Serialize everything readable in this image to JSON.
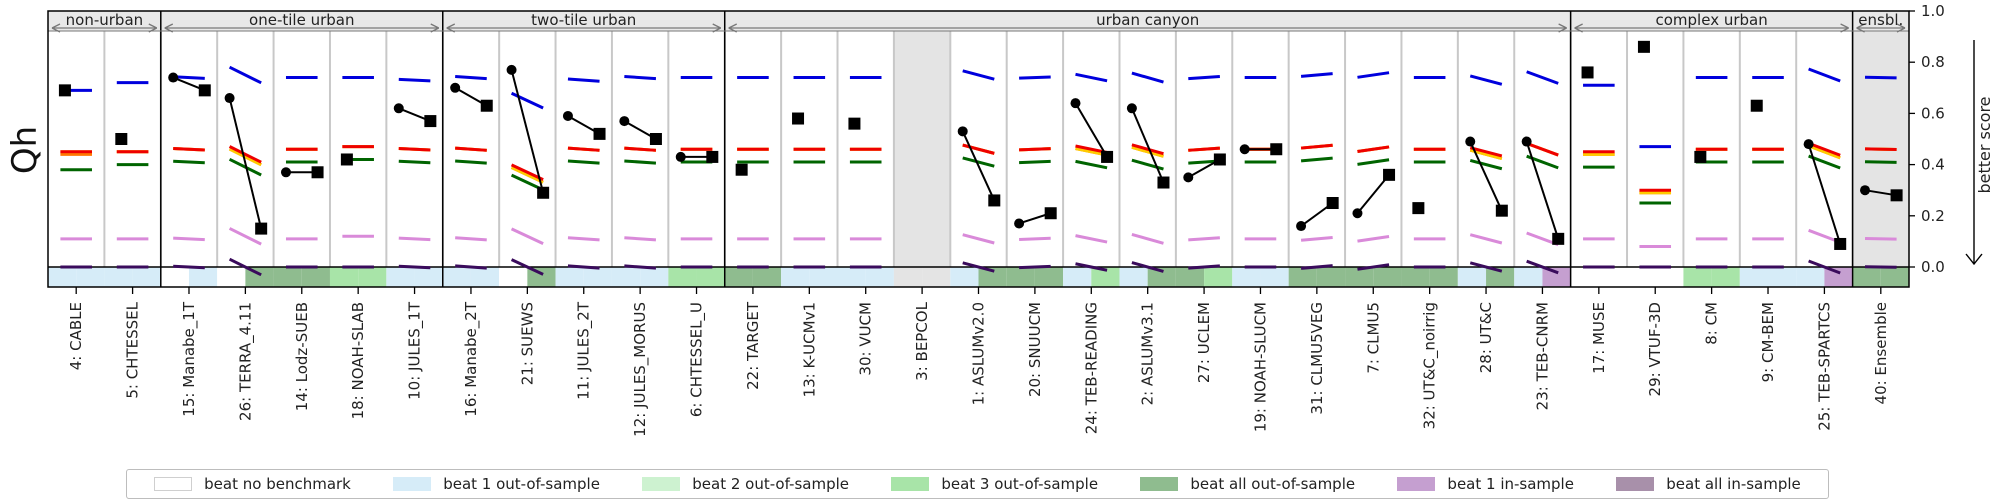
{
  "chart_data": {
    "type": "line",
    "ylabel": "Qh",
    "right_label": "better score",
    "ylim": [
      0.0,
      1.0
    ],
    "yticks": [
      "0.0",
      "0.2",
      "0.4",
      "0.6",
      "0.8",
      "1.0"
    ],
    "groups": [
      {
        "label": "non-urban",
        "start": 0,
        "end": 1
      },
      {
        "label": "one-tile urban",
        "start": 2,
        "end": 6
      },
      {
        "label": "two-tile urban",
        "start": 7,
        "end": 11
      },
      {
        "label": "urban canyon",
        "start": 12,
        "end": 26
      },
      {
        "label": "complex urban",
        "start": 27,
        "end": 31
      },
      {
        "label": "ensbl.",
        "start": 32,
        "end": 32
      }
    ],
    "benchmark_colors": {
      "1:l": "#0000dd",
      "2:s": "#ff7700",
      "3:i": "#ee0000",
      "4:e": "#ffcc00",
      "5:a": "#006400",
      "6:n": "#d98ad9",
      "7:s": "#3a0b5c"
    },
    "legend": [
      {
        "label": "beat no benchmark",
        "color": "#ffffff"
      },
      {
        "label": "beat 1 out-of-sample",
        "color": "#d6ecf8"
      },
      {
        "label": "beat 2 out-of-sample",
        "color": "#cdf2d0"
      },
      {
        "label": "beat 3 out-of-sample",
        "color": "#a8e4a8"
      },
      {
        "label": "beat all out-of-sample",
        "color": "#8fbc8f"
      },
      {
        "label": "beat 1 in-sample",
        "color": "#c59fd0"
      },
      {
        "label": "beat all in-sample",
        "color": "#a890aa"
      }
    ],
    "models": [
      {
        "label": "4: CABLE",
        "p1": 0.69,
        "p2": null,
        "bench": [
          0.69,
          0.44,
          0.45,
          0.45,
          0.38,
          0.11,
          0.0
        ],
        "strip": [
          "#d6ecf8",
          "#d6ecf8"
        ]
      },
      {
        "label": "5: CHTESSEL",
        "p1": 0.5,
        "p2": null,
        "bench": [
          0.72,
          0.45,
          0.45,
          0.45,
          0.4,
          0.11,
          0.0
        ],
        "strip": [
          "#d6ecf8",
          "#d6ecf8"
        ]
      },
      {
        "label": "15: Manabe_1T",
        "p1": 0.74,
        "p2": 0.69,
        "bench": [
          0.74,
          0.46,
          0.46,
          0.46,
          0.41,
          0.11,
          0.0
        ],
        "strip": [
          "#ffffff",
          "#d6ecf8"
        ]
      },
      {
        "label": "26: TERRA_4.11",
        "p1": 0.66,
        "p2": 0.15,
        "bench": [
          0.75,
          0.43,
          0.44,
          0.43,
          0.39,
          0.12,
          0.0
        ],
        "strip": [
          "#ffffff",
          "#8fbc8f"
        ]
      },
      {
        "label": "14: Lodz-SUEB",
        "p1": 0.37,
        "p2": 0.37,
        "bench": [
          0.74,
          0.46,
          0.46,
          0.46,
          0.41,
          0.11,
          0.0
        ],
        "strip": [
          "#8fbc8f",
          "#8fbc8f"
        ]
      },
      {
        "label": "18: NOAH-SLAB",
        "p1": 0.42,
        "p2": null,
        "bench": [
          0.74,
          0.47,
          0.47,
          0.47,
          0.42,
          0.12,
          0.0
        ],
        "strip": [
          "#a8e4a8",
          "#a8e4a8"
        ]
      },
      {
        "label": "10: JULES_1T",
        "p1": 0.62,
        "p2": 0.57,
        "bench": [
          0.73,
          0.46,
          0.46,
          0.46,
          0.41,
          0.11,
          0.0
        ],
        "strip": [
          "#d6ecf8",
          "#d6ecf8"
        ]
      },
      {
        "label": "16: Manabe_2T",
        "p1": 0.7,
        "p2": 0.63,
        "bench": [
          0.74,
          0.46,
          0.46,
          0.46,
          0.41,
          0.11,
          0.0
        ],
        "strip": [
          "#d6ecf8",
          "#d6ecf8"
        ]
      },
      {
        "label": "21: SUEWS",
        "p1": 0.77,
        "p2": 0.29,
        "bench": [
          0.65,
          0.36,
          0.37,
          0.36,
          0.33,
          0.12,
          0.0
        ],
        "strip": [
          "#ffffff",
          "#8fbc8f"
        ]
      },
      {
        "label": "11: JULES_2T",
        "p1": 0.59,
        "p2": 0.52,
        "bench": [
          0.73,
          0.46,
          0.46,
          0.46,
          0.41,
          0.11,
          0.0
        ],
        "strip": [
          "#d6ecf8",
          "#d6ecf8"
        ]
      },
      {
        "label": "12: JULES_MORUS",
        "p1": 0.57,
        "p2": 0.5,
        "bench": [
          0.74,
          0.46,
          0.46,
          0.46,
          0.41,
          0.11,
          0.0
        ],
        "strip": [
          "#d6ecf8",
          "#d6ecf8"
        ]
      },
      {
        "label": "6: CHTESSEL_U",
        "p1": 0.43,
        "p2": 0.43,
        "bench": [
          0.74,
          0.46,
          0.46,
          0.46,
          0.41,
          0.11,
          0.0
        ],
        "strip": [
          "#a8e4a8",
          "#a8e4a8"
        ]
      },
      {
        "label": "22: TARGET",
        "p1": 0.38,
        "p2": null,
        "bench": [
          0.74,
          0.46,
          0.46,
          0.46,
          0.41,
          0.11,
          0.0
        ],
        "strip": [
          "#8fbc8f",
          "#8fbc8f"
        ]
      },
      {
        "label": "13: K-UCMv1",
        "p1": 0.58,
        "p2": null,
        "bench": [
          0.74,
          0.46,
          0.46,
          0.46,
          0.41,
          0.11,
          0.0
        ],
        "strip": [
          "#d6ecf8",
          "#d6ecf8"
        ]
      },
      {
        "label": "30: VUCM",
        "p1": 0.56,
        "p2": null,
        "bench": [
          0.74,
          0.46,
          0.46,
          0.46,
          0.41,
          0.11,
          0.0
        ],
        "strip": [
          "#d6ecf8",
          "#d6ecf8"
        ]
      },
      {
        "label": "3: BEPCOL",
        "p1": null,
        "p2": null,
        "bench": null,
        "strip": [
          "#e4e4e4",
          "#e4e4e4"
        ]
      },
      {
        "label": "1: ASLUMv2.0",
        "p1": 0.53,
        "p2": 0.26,
        "bench": [
          0.75,
          0.46,
          0.46,
          0.46,
          0.41,
          0.11,
          0.0
        ],
        "strip": [
          "#d6ecf8",
          "#8fbc8f"
        ]
      },
      {
        "label": "20: SNUUCM",
        "p1": 0.17,
        "p2": 0.21,
        "bench": [
          0.74,
          0.46,
          0.46,
          0.46,
          0.41,
          0.11,
          0.0
        ],
        "strip": [
          "#8fbc8f",
          "#8fbc8f"
        ]
      },
      {
        "label": "24: TEB-READING",
        "p1": 0.64,
        "p2": 0.43,
        "bench": [
          0.74,
          0.45,
          0.46,
          0.45,
          0.4,
          0.11,
          0.0
        ],
        "strip": [
          "#d6ecf8",
          "#a8e4a8"
        ]
      },
      {
        "label": "2: ASLUMv3.1",
        "p1": 0.62,
        "p2": 0.33,
        "bench": [
          0.74,
          0.45,
          0.46,
          0.45,
          0.4,
          0.11,
          0.0
        ],
        "strip": [
          "#d6ecf8",
          "#8fbc8f"
        ]
      },
      {
        "label": "27: UCLEM",
        "p1": 0.35,
        "p2": 0.42,
        "bench": [
          0.74,
          0.46,
          0.46,
          0.46,
          0.41,
          0.11,
          0.0
        ],
        "strip": [
          "#8fbc8f",
          "#a8e4a8"
        ]
      },
      {
        "label": "19: NOAH-SLUCM",
        "p1": 0.46,
        "p2": 0.46,
        "bench": [
          0.74,
          0.46,
          0.46,
          0.46,
          0.41,
          0.11,
          0.0
        ],
        "strip": [
          "#d6ecf8",
          "#d6ecf8"
        ]
      },
      {
        "label": "31: CLMU5VEG",
        "p1": 0.16,
        "p2": 0.25,
        "bench": [
          0.75,
          0.47,
          0.47,
          0.47,
          0.42,
          0.11,
          0.0
        ],
        "strip": [
          "#8fbc8f",
          "#8fbc8f"
        ]
      },
      {
        "label": "7: CLMU5",
        "p1": 0.21,
        "p2": 0.36,
        "bench": [
          0.75,
          0.46,
          0.46,
          0.46,
          0.41,
          0.11,
          0.0
        ],
        "strip": [
          "#8fbc8f",
          "#8fbc8f"
        ]
      },
      {
        "label": "32: UT&C_noirrig",
        "p1": 0.23,
        "p2": null,
        "bench": [
          0.74,
          0.46,
          0.46,
          0.46,
          0.41,
          0.11,
          0.0
        ],
        "strip": [
          "#8fbc8f",
          "#8fbc8f"
        ]
      },
      {
        "label": "28: UT&C",
        "p1": 0.49,
        "p2": 0.22,
        "bench": [
          0.73,
          0.44,
          0.45,
          0.44,
          0.4,
          0.11,
          0.0
        ],
        "strip": [
          "#d6ecf8",
          "#8fbc8f"
        ]
      },
      {
        "label": "23: TEB-CNRM",
        "p1": 0.49,
        "p2": 0.11,
        "bench": [
          0.74,
          0.46,
          0.46,
          0.46,
          0.41,
          0.11,
          0.0
        ],
        "strip": [
          "#d6ecf8",
          "#c59fd0"
        ]
      },
      {
        "label": "17: MUSE",
        "p1": 0.76,
        "p2": null,
        "bench": [
          0.71,
          0.44,
          0.45,
          0.44,
          0.39,
          0.11,
          0.0
        ],
        "strip": [
          "#ffffff",
          "#ffffff"
        ]
      },
      {
        "label": "29: VTUF-3D",
        "p1": 0.86,
        "p2": null,
        "bench": [
          0.47,
          0.29,
          0.3,
          0.29,
          0.25,
          0.08,
          0.0
        ],
        "strip": [
          "#ffffff",
          "#ffffff"
        ]
      },
      {
        "label": "8: CM",
        "p1": 0.43,
        "p2": null,
        "bench": [
          0.74,
          0.46,
          0.46,
          0.46,
          0.41,
          0.11,
          0.0
        ],
        "strip": [
          "#a8e4a8",
          "#a8e4a8"
        ]
      },
      {
        "label": "9: CM-BEM",
        "p1": 0.63,
        "p2": null,
        "bench": [
          0.74,
          0.46,
          0.46,
          0.46,
          0.41,
          0.11,
          0.0
        ],
        "strip": [
          "#d6ecf8",
          "#d6ecf8"
        ]
      },
      {
        "label": "25: TEB-SPARTCS",
        "p1": 0.48,
        "p2": 0.09,
        "bench": [
          0.75,
          0.45,
          0.46,
          0.45,
          0.41,
          0.12,
          0.0
        ],
        "strip": [
          "#d6ecf8",
          "#c59fd0"
        ]
      },
      {
        "label": "40: Ensemble",
        "p1": 0.3,
        "p2": 0.28,
        "bench": [
          0.74,
          0.46,
          0.46,
          0.46,
          0.41,
          0.11,
          0.0
        ],
        "strip": [
          "#8fbc8f",
          "#8fbc8f"
        ]
      }
    ]
  }
}
